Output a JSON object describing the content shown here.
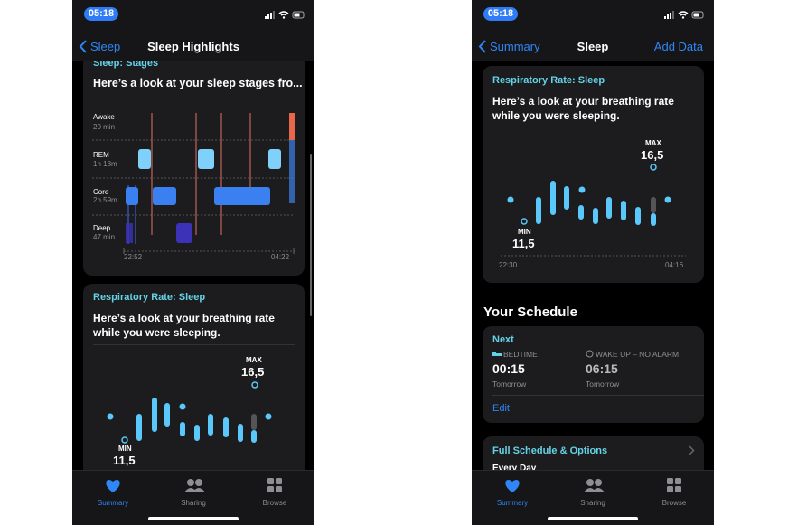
{
  "left_screen": {
    "status_time": "05:18",
    "nav": {
      "back": "Sleep",
      "title": "Sleep Highlights"
    },
    "stages_card": {
      "title": "Sleep: Stages",
      "subtitle": "Here’s a look at your sleep stages fro...",
      "stages": [
        {
          "name": "Awake",
          "duration": "20 min"
        },
        {
          "name": "REM",
          "duration": "1h 18m"
        },
        {
          "name": "Core",
          "duration": "2h 59m"
        },
        {
          "name": "Deep",
          "duration": "47 min"
        }
      ],
      "start_time": "22:52",
      "end_time": "04:22"
    },
    "respiratory_card": {
      "title": "Respiratory Rate: Sleep",
      "lines": [
        "Here’s a look at your breathing rate",
        "while you were sleeping."
      ],
      "max_label": "MAX",
      "max_value": "16,5",
      "min_label": "MIN",
      "min_value": "11,5"
    },
    "tab_bar": [
      "Summary",
      "Sharing",
      "Browse"
    ]
  },
  "right_screen": {
    "status_time": "05:18",
    "nav": {
      "back": "Summary",
      "title": "Sleep",
      "action": "Add Data"
    },
    "respiratory_card": {
      "title": "Respiratory Rate: Sleep",
      "lines": [
        "Here’s a look at your breathing rate",
        "while you were sleeping."
      ],
      "max_label": "MAX",
      "max_value": "16,5",
      "min_label": "MIN",
      "min_value": "11,5",
      "start_time": "22:30",
      "end_time": "04:16"
    },
    "schedule": {
      "heading": "Your Schedule",
      "next_card": {
        "label": "Next",
        "bedtime": {
          "label": "BEDTIME",
          "time": "00:15",
          "day": "Tomorrow"
        },
        "wake_up": {
          "label": "WAKE UP – NO ALARM",
          "time": "06:15",
          "day": "Tomorrow"
        },
        "edit": "Edit"
      },
      "full_card": {
        "title": "Full Schedule & Options",
        "subtitle": "Every Day"
      }
    },
    "tab_bar": [
      "Summary",
      "Sharing",
      "Browse"
    ]
  }
}
